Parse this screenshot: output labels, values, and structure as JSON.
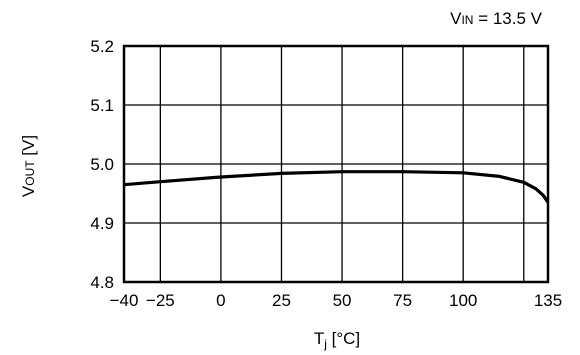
{
  "chart_data": {
    "type": "line",
    "annotation": {
      "main": "V",
      "sub": "IN",
      "rest": " = 13.5 V"
    },
    "xlabel": {
      "main": "T",
      "sub": "j",
      "rest": " [°C]"
    },
    "ylabel": {
      "main": "V",
      "sub": "OUT",
      "rest": " [V]"
    },
    "xlim": [
      -40,
      135
    ],
    "ylim": [
      4.8,
      5.2
    ],
    "x_ticks": [
      -40,
      -25,
      0,
      25,
      50,
      75,
      100,
      135
    ],
    "x_tick_labels": [
      "−40",
      "−25",
      "0",
      "25",
      "50",
      "75",
      "100",
      "135"
    ],
    "x_grid": [
      -40,
      -25,
      0,
      25,
      50,
      75,
      100,
      125,
      135
    ],
    "y_ticks": [
      4.8,
      4.9,
      5.0,
      5.1,
      5.2
    ],
    "y_tick_labels": [
      "4.8",
      "4.9",
      "5.0",
      "5.1",
      "5.2"
    ],
    "grid": true,
    "series": [
      {
        "x": [
          -40,
          -25,
          0,
          25,
          50,
          75,
          100,
          115,
          125,
          130,
          133,
          135
        ],
        "y": [
          4.965,
          4.97,
          4.978,
          4.984,
          4.987,
          4.987,
          4.985,
          4.979,
          4.969,
          4.958,
          4.947,
          4.935
        ]
      }
    ],
    "colors": {
      "line": "#000000",
      "grid": "#000000",
      "background": "#ffffff"
    }
  }
}
